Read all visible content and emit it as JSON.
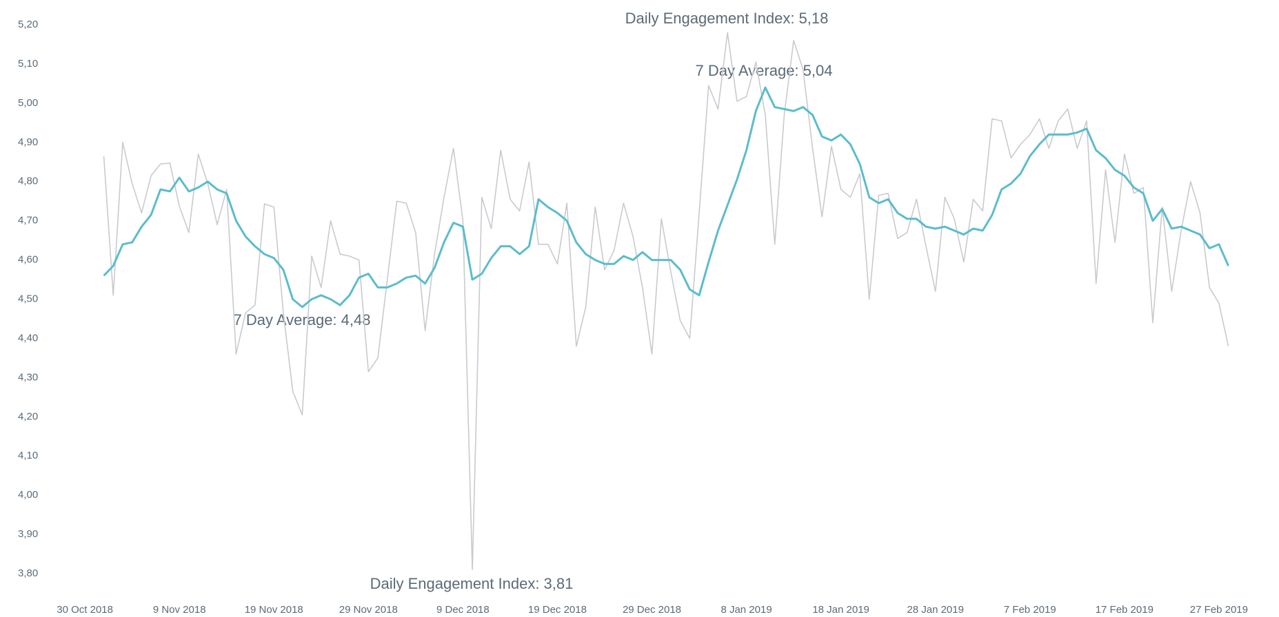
{
  "chart_data": {
    "type": "line",
    "annotations": [
      "Daily Engagement Index: 5,18",
      "7 Day Average: 5,04",
      "7 Day Average: 4,48",
      "Daily Engagement Index: 3,81"
    ],
    "x": [
      "2018-11-01",
      "2018-11-02",
      "2018-11-03",
      "2018-11-04",
      "2018-11-05",
      "2018-11-06",
      "2018-11-07",
      "2018-11-08",
      "2018-11-09",
      "2018-11-10",
      "2018-11-11",
      "2018-11-12",
      "2018-11-13",
      "2018-11-14",
      "2018-11-15",
      "2018-11-16",
      "2018-11-17",
      "2018-11-18",
      "2018-11-19",
      "2018-11-20",
      "2018-11-21",
      "2018-11-22",
      "2018-11-23",
      "2018-11-24",
      "2018-11-25",
      "2018-11-26",
      "2018-11-27",
      "2018-11-28",
      "2018-11-29",
      "2018-11-30",
      "2018-12-01",
      "2018-12-02",
      "2018-12-03",
      "2018-12-04",
      "2018-12-05",
      "2018-12-06",
      "2018-12-07",
      "2018-12-08",
      "2018-12-09",
      "2018-12-10",
      "2018-12-11",
      "2018-12-12",
      "2018-12-13",
      "2018-12-14",
      "2018-12-15",
      "2018-12-16",
      "2018-12-17",
      "2018-12-18",
      "2018-12-19",
      "2018-12-20",
      "2018-12-21",
      "2018-12-22",
      "2018-12-23",
      "2018-12-24",
      "2018-12-25",
      "2018-12-26",
      "2018-12-27",
      "2018-12-28",
      "2018-12-29",
      "2018-12-30",
      "2018-12-31",
      "2019-01-01",
      "2019-01-02",
      "2019-01-03",
      "2019-01-04",
      "2019-01-05",
      "2019-01-06",
      "2019-01-07",
      "2019-01-08",
      "2019-01-09",
      "2019-01-10",
      "2019-01-11",
      "2019-01-12",
      "2019-01-13",
      "2019-01-14",
      "2019-01-15",
      "2019-01-16",
      "2019-01-17",
      "2019-01-18",
      "2019-01-19",
      "2019-01-20",
      "2019-01-21",
      "2019-01-22",
      "2019-01-23",
      "2019-01-24",
      "2019-01-25",
      "2019-01-26",
      "2019-01-27",
      "2019-01-28",
      "2019-01-29",
      "2019-01-30",
      "2019-01-31",
      "2019-02-01",
      "2019-02-02",
      "2019-02-03",
      "2019-02-04",
      "2019-02-05",
      "2019-02-06",
      "2019-02-07",
      "2019-02-08",
      "2019-02-09",
      "2019-02-10",
      "2019-02-11",
      "2019-02-12",
      "2019-02-13",
      "2019-02-14",
      "2019-02-15",
      "2019-02-16",
      "2019-02-17",
      "2019-02-18",
      "2019-02-19",
      "2019-02-20",
      "2019-02-21",
      "2019-02-22",
      "2019-02-23",
      "2019-02-24",
      "2019-02-25",
      "2019-02-26",
      "2019-02-27",
      "2019-02-28"
    ],
    "series": [
      {
        "name": "Daily Engagement Index",
        "color": "#c9cacf",
        "width": 1.6,
        "values": [
          4.865,
          4.51,
          4.9,
          4.795,
          4.72,
          4.815,
          4.845,
          4.847,
          4.737,
          4.67,
          4.87,
          4.795,
          4.69,
          4.78,
          4.36,
          4.465,
          4.485,
          4.743,
          4.735,
          4.465,
          4.265,
          4.205,
          4.61,
          4.53,
          4.7,
          4.615,
          4.61,
          4.6,
          4.315,
          4.35,
          4.55,
          4.75,
          4.745,
          4.67,
          4.42,
          4.615,
          4.76,
          4.885,
          4.7,
          3.81,
          4.76,
          4.68,
          4.88,
          4.755,
          4.725,
          4.85,
          4.64,
          4.64,
          4.59,
          4.745,
          4.38,
          4.48,
          4.735,
          4.575,
          4.625,
          4.745,
          4.66,
          4.53,
          4.36,
          4.705,
          4.57,
          4.445,
          4.4,
          4.72,
          5.045,
          4.985,
          5.18,
          5.005,
          5.017,
          5.105,
          4.97,
          4.64,
          4.97,
          5.16,
          5.085,
          4.885,
          4.71,
          4.89,
          4.78,
          4.76,
          4.82,
          4.5,
          4.765,
          4.77,
          4.655,
          4.67,
          4.755,
          4.635,
          4.52,
          4.76,
          4.705,
          4.595,
          4.755,
          4.725,
          4.96,
          4.955,
          4.86,
          4.895,
          4.92,
          4.96,
          4.885,
          4.955,
          4.985,
          4.885,
          4.955,
          4.54,
          4.83,
          4.645,
          4.87,
          4.77,
          4.785,
          4.44,
          4.735,
          4.52,
          4.675,
          4.8,
          4.72,
          4.53,
          4.49,
          4.38
        ]
      },
      {
        "name": "7 Day Average",
        "color": "#5bbccc",
        "width": 3,
        "values": [
          4.56,
          4.585,
          4.64,
          4.645,
          4.685,
          4.715,
          4.78,
          4.775,
          4.81,
          4.775,
          4.785,
          4.8,
          4.78,
          4.77,
          4.7,
          4.66,
          4.635,
          4.615,
          4.605,
          4.575,
          4.5,
          4.48,
          4.5,
          4.51,
          4.5,
          4.485,
          4.51,
          4.555,
          4.565,
          4.53,
          4.53,
          4.54,
          4.555,
          4.56,
          4.54,
          4.58,
          4.645,
          4.695,
          4.685,
          4.55,
          4.565,
          4.605,
          4.635,
          4.635,
          4.615,
          4.635,
          4.755,
          4.735,
          4.72,
          4.7,
          4.645,
          4.615,
          4.6,
          4.59,
          4.59,
          4.61,
          4.6,
          4.62,
          4.6,
          4.6,
          4.6,
          4.575,
          4.525,
          4.51,
          4.595,
          4.675,
          4.74,
          4.805,
          4.88,
          4.98,
          5.04,
          4.99,
          4.985,
          4.98,
          4.99,
          4.97,
          4.915,
          4.905,
          4.92,
          4.895,
          4.845,
          4.76,
          4.745,
          4.755,
          4.72,
          4.705,
          4.705,
          4.685,
          4.68,
          4.685,
          4.675,
          4.665,
          4.68,
          4.675,
          4.715,
          4.78,
          4.795,
          4.82,
          4.865,
          4.895,
          4.92,
          4.92,
          4.92,
          4.925,
          4.935,
          4.88,
          4.86,
          4.83,
          4.815,
          4.785,
          4.77,
          4.7,
          4.73,
          4.68,
          4.685,
          4.675,
          4.665,
          4.63,
          4.64,
          4.585
        ]
      }
    ],
    "xlim": [
      "2018-10-27",
      "2019-03-02"
    ],
    "xticks": [
      {
        "value": "2018-10-30",
        "label": "30 Oct 2018"
      },
      {
        "value": "2018-11-09",
        "label": "9 Nov 2018"
      },
      {
        "value": "2018-11-19",
        "label": "19 Nov 2018"
      },
      {
        "value": "2018-11-29",
        "label": "29 Nov 2018"
      },
      {
        "value": "2018-12-09",
        "label": "9 Dec 2018"
      },
      {
        "value": "2018-12-19",
        "label": "19 Dec 2018"
      },
      {
        "value": "2018-12-29",
        "label": "29 Dec 2018"
      },
      {
        "value": "2019-01-08",
        "label": "8 Jan 2019"
      },
      {
        "value": "2019-01-18",
        "label": "18 Jan 2019"
      },
      {
        "value": "2019-01-28",
        "label": "28 Jan 2019"
      },
      {
        "value": "2019-02-07",
        "label": "7 Feb 2019"
      },
      {
        "value": "2019-02-17",
        "label": "17 Feb 2019"
      },
      {
        "value": "2019-02-27",
        "label": "27 Feb 2019"
      }
    ],
    "ylim": [
      3.8,
      5.2
    ],
    "yticks": [
      {
        "value": 3.8,
        "label": "3,80"
      },
      {
        "value": 3.9,
        "label": "3,90"
      },
      {
        "value": 4.0,
        "label": "4,00"
      },
      {
        "value": 4.1,
        "label": "4,10"
      },
      {
        "value": 4.2,
        "label": "4,20"
      },
      {
        "value": 4.3,
        "label": "4,30"
      },
      {
        "value": 4.4,
        "label": "4,40"
      },
      {
        "value": 4.5,
        "label": "4,50"
      },
      {
        "value": 4.6,
        "label": "4,60"
      },
      {
        "value": 4.7,
        "label": "4,70"
      },
      {
        "value": 4.8,
        "label": "4,80"
      },
      {
        "value": 4.9,
        "label": "4,90"
      },
      {
        "value": 5.0,
        "label": "5,00"
      },
      {
        "value": 5.1,
        "label": "5,10"
      },
      {
        "value": 5.2,
        "label": "5,20"
      }
    ],
    "grid": false
  }
}
